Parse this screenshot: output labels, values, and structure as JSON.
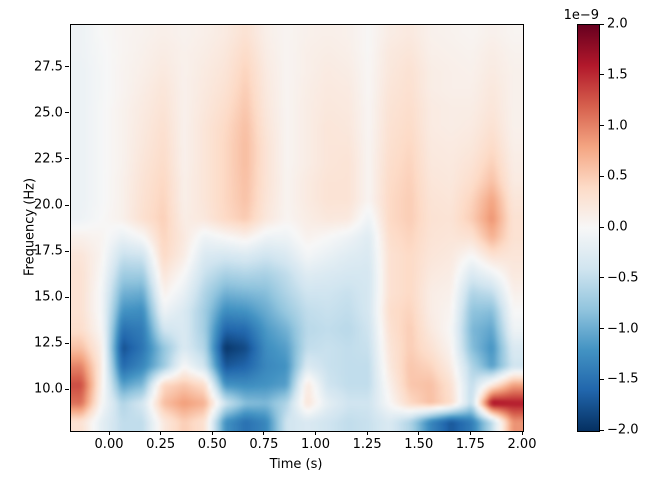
{
  "axes": {
    "xlabel": "Time (s)",
    "ylabel": "Frequency (Hz)",
    "x_ticks": [
      {
        "label": "0.00",
        "value": 0.0
      },
      {
        "label": "0.25",
        "value": 0.25
      },
      {
        "label": "0.50",
        "value": 0.5
      },
      {
        "label": "0.75",
        "value": 0.75
      },
      {
        "label": "1.00",
        "value": 1.0
      },
      {
        "label": "1.25",
        "value": 1.25
      },
      {
        "label": "1.50",
        "value": 1.5
      },
      {
        "label": "1.75",
        "value": 1.75
      },
      {
        "label": "2.00",
        "value": 2.0
      }
    ],
    "y_ticks": [
      {
        "label": "27.5",
        "value": 27.5
      },
      {
        "label": "25.0",
        "value": 25.0
      },
      {
        "label": "22.5",
        "value": 22.5
      },
      {
        "label": "20.0",
        "value": 20.0
      },
      {
        "label": "17.5",
        "value": 17.5
      },
      {
        "label": "15.0",
        "value": 15.0
      },
      {
        "label": "12.5",
        "value": 12.5
      },
      {
        "label": "10.0",
        "value": 10.0
      }
    ]
  },
  "colorbar": {
    "offset_label": "1e−9",
    "vmin": -2.0,
    "vmax": 2.0,
    "ticks": [
      {
        "label": "2.0",
        "value": 2.0
      },
      {
        "label": "1.5",
        "value": 1.5
      },
      {
        "label": "1.0",
        "value": 1.0
      },
      {
        "label": "0.5",
        "value": 0.5
      },
      {
        "label": "0.0",
        "value": 0.0
      },
      {
        "label": "−0.5",
        "value": -0.5
      },
      {
        "label": "−1.0",
        "value": -1.0
      },
      {
        "label": "−1.5",
        "value": -1.5
      },
      {
        "label": "−2.0",
        "value": -2.0
      }
    ],
    "gradient_colors": [
      "#053061",
      "#2166ac",
      "#4393c3",
      "#92c5de",
      "#d1e5f0",
      "#f7f7f7",
      "#fddbc7",
      "#f4a582",
      "#d6604d",
      "#b2182b",
      "#67001f"
    ]
  },
  "chart_data": {
    "type": "heatmap",
    "title": "",
    "xlabel": "Time (s)",
    "ylabel": "Frequency (Hz)",
    "colormap": "RdBu_r",
    "value_scale": "1e-9",
    "vmin": -2.0,
    "vmax": 2.0,
    "x_range": [
      -0.189,
      2.0
    ],
    "y_range": [
      7.8,
      29.82
    ],
    "grid": false,
    "legend": "colorbar-right",
    "times": [
      -0.14,
      -0.04,
      0.06,
      0.16,
      0.26,
      0.36,
      0.46,
      0.56,
      0.66,
      0.76,
      0.86,
      0.96,
      1.06,
      1.16,
      1.26,
      1.36,
      1.46,
      1.56,
      1.66,
      1.76,
      1.86,
      1.96
    ],
    "freqs_top_to_bottom": [
      29.5,
      28.5,
      27.5,
      26.5,
      25.5,
      24.5,
      23.5,
      22.5,
      21.5,
      20.5,
      19.5,
      18.5,
      17.5,
      16.5,
      15.5,
      14.5,
      13.5,
      12.5,
      11.5,
      10.5,
      9.5,
      8.5
    ],
    "values": [
      [
        -0.1,
        0.0,
        0.05,
        0.08,
        0.12,
        0.08,
        0.12,
        0.18,
        0.3,
        0.12,
        0.05,
        0.1,
        0.12,
        0.1,
        0.02,
        0.15,
        0.2,
        0.1,
        0.08,
        0.05,
        0.1,
        0.05
      ],
      [
        -0.1,
        -0.02,
        0.05,
        0.1,
        0.16,
        0.1,
        0.15,
        0.22,
        0.38,
        0.15,
        0.05,
        0.12,
        0.15,
        0.12,
        0.02,
        0.2,
        0.25,
        0.12,
        0.1,
        0.08,
        0.15,
        0.08
      ],
      [
        -0.12,
        -0.03,
        0.06,
        0.12,
        0.2,
        0.1,
        0.18,
        0.26,
        0.45,
        0.18,
        0.05,
        0.12,
        0.18,
        0.15,
        0.03,
        0.22,
        0.3,
        0.15,
        0.12,
        0.1,
        0.18,
        0.1
      ],
      [
        -0.12,
        -0.03,
        0.06,
        0.15,
        0.25,
        0.1,
        0.2,
        0.3,
        0.5,
        0.2,
        0.05,
        0.14,
        0.2,
        0.18,
        0.03,
        0.25,
        0.32,
        0.15,
        0.12,
        0.12,
        0.22,
        0.1
      ],
      [
        -0.12,
        -0.02,
        0.08,
        0.18,
        0.28,
        0.1,
        0.22,
        0.35,
        0.55,
        0.22,
        0.05,
        0.15,
        0.22,
        0.2,
        0.04,
        0.28,
        0.35,
        0.18,
        0.15,
        0.15,
        0.25,
        0.1
      ],
      [
        -0.12,
        -0.02,
        0.08,
        0.2,
        0.32,
        0.1,
        0.25,
        0.4,
        0.6,
        0.25,
        0.05,
        0.15,
        0.25,
        0.22,
        0.04,
        0.3,
        0.38,
        0.18,
        0.15,
        0.18,
        0.3,
        0.1
      ],
      [
        -0.12,
        -0.02,
        0.08,
        0.22,
        0.35,
        0.1,
        0.25,
        0.42,
        0.62,
        0.28,
        0.05,
        0.15,
        0.25,
        0.25,
        0.05,
        0.32,
        0.42,
        0.2,
        0.18,
        0.22,
        0.38,
        0.12
      ],
      [
        -0.12,
        -0.02,
        0.08,
        0.25,
        0.38,
        0.1,
        0.25,
        0.42,
        0.62,
        0.28,
        0.05,
        0.15,
        0.25,
        0.28,
        0.05,
        0.35,
        0.45,
        0.22,
        0.2,
        0.28,
        0.48,
        0.15
      ],
      [
        -0.12,
        -0.02,
        0.1,
        0.28,
        0.42,
        0.12,
        0.25,
        0.42,
        0.6,
        0.28,
        0.06,
        0.18,
        0.28,
        0.28,
        0.05,
        0.38,
        0.48,
        0.25,
        0.22,
        0.35,
        0.6,
        0.18
      ],
      [
        -0.12,
        -0.02,
        0.1,
        0.3,
        0.45,
        0.12,
        0.25,
        0.42,
        0.58,
        0.26,
        0.06,
        0.18,
        0.28,
        0.28,
        0.05,
        0.4,
        0.5,
        0.28,
        0.25,
        0.45,
        0.8,
        0.25
      ],
      [
        -0.1,
        0.0,
        0.1,
        0.32,
        0.48,
        0.15,
        0.22,
        0.4,
        0.52,
        0.22,
        0.05,
        0.15,
        0.22,
        0.2,
        -0.1,
        0.4,
        0.5,
        0.3,
        0.28,
        0.5,
        0.9,
        0.3
      ],
      [
        0.1,
        0.05,
        -0.15,
        0.0,
        0.45,
        0.2,
        -0.1,
        0.0,
        0.1,
        -0.1,
        -0.1,
        0.08,
        0.0,
        -0.1,
        -0.25,
        0.35,
        0.45,
        0.28,
        0.25,
        0.3,
        0.7,
        0.3
      ],
      [
        0.25,
        0.05,
        -0.45,
        -0.4,
        0.4,
        0.15,
        -0.3,
        -0.35,
        -0.3,
        -0.4,
        -0.3,
        -0.05,
        -0.15,
        -0.25,
        -0.3,
        0.3,
        0.4,
        0.25,
        0.2,
        0.0,
        0.3,
        0.25
      ],
      [
        0.3,
        0.0,
        -0.7,
        -0.7,
        0.25,
        0.0,
        -0.45,
        -0.65,
        -0.6,
        -0.65,
        -0.5,
        -0.25,
        -0.3,
        -0.35,
        -0.35,
        0.3,
        0.4,
        0.2,
        0.15,
        -0.3,
        -0.1,
        0.2
      ],
      [
        0.3,
        -0.05,
        -0.95,
        -1.0,
        0.1,
        -0.15,
        -0.6,
        -0.95,
        -0.9,
        -0.85,
        -0.6,
        -0.4,
        -0.4,
        -0.45,
        -0.35,
        0.3,
        0.4,
        0.15,
        0.1,
        -0.6,
        -0.5,
        0.1
      ],
      [
        0.3,
        -0.05,
        -1.2,
        -1.25,
        -0.1,
        -0.3,
        -0.7,
        -1.25,
        -1.2,
        -1.0,
        -0.75,
        -0.5,
        -0.45,
        -0.5,
        -0.35,
        0.35,
        0.45,
        0.15,
        0.05,
        -0.8,
        -0.85,
        0.0
      ],
      [
        0.35,
        0.0,
        -1.5,
        -1.4,
        -0.4,
        -0.3,
        -0.7,
        -1.6,
        -1.55,
        -1.15,
        -0.95,
        -0.55,
        -0.5,
        -0.55,
        -0.4,
        0.3,
        0.5,
        0.2,
        0.0,
        -0.9,
        -1.05,
        -0.1
      ],
      [
        0.6,
        0.1,
        -1.75,
        -1.45,
        -0.8,
        -0.3,
        -0.6,
        -1.95,
        -1.8,
        -1.25,
        -1.1,
        -0.5,
        -0.45,
        -0.5,
        -0.45,
        0.25,
        0.5,
        0.3,
        0.05,
        -0.85,
        -1.2,
        -0.3
      ],
      [
        1.0,
        0.15,
        -1.55,
        -1.3,
        -0.75,
        0.0,
        -0.4,
        -1.7,
        -1.6,
        -1.3,
        -1.2,
        -0.3,
        -0.45,
        -0.5,
        -0.5,
        0.2,
        0.55,
        0.45,
        0.15,
        -0.6,
        -1.1,
        -0.4
      ],
      [
        1.3,
        0.1,
        -1.1,
        -0.9,
        0.4,
        0.55,
        0.35,
        -1.2,
        -1.25,
        -1.2,
        -1.1,
        0.2,
        -0.4,
        -0.5,
        -0.5,
        0.1,
        0.55,
        0.6,
        0.3,
        -0.5,
        0.2,
        0.8
      ],
      [
        1.1,
        0.0,
        -0.6,
        -0.35,
        0.6,
        0.85,
        0.7,
        -0.4,
        -0.85,
        -0.9,
        -0.6,
        0.25,
        -0.2,
        -0.4,
        -0.4,
        0.0,
        0.4,
        0.6,
        0.35,
        -0.5,
        1.7,
        1.6
      ],
      [
        0.3,
        -0.2,
        -0.5,
        -0.5,
        0.2,
        0.5,
        0.3,
        -1.2,
        -1.5,
        -1.3,
        -0.4,
        -0.3,
        -0.4,
        -0.5,
        -0.45,
        -0.3,
        -0.6,
        -1.3,
        -1.7,
        -1.4,
        -0.5,
        0.9
      ]
    ]
  }
}
